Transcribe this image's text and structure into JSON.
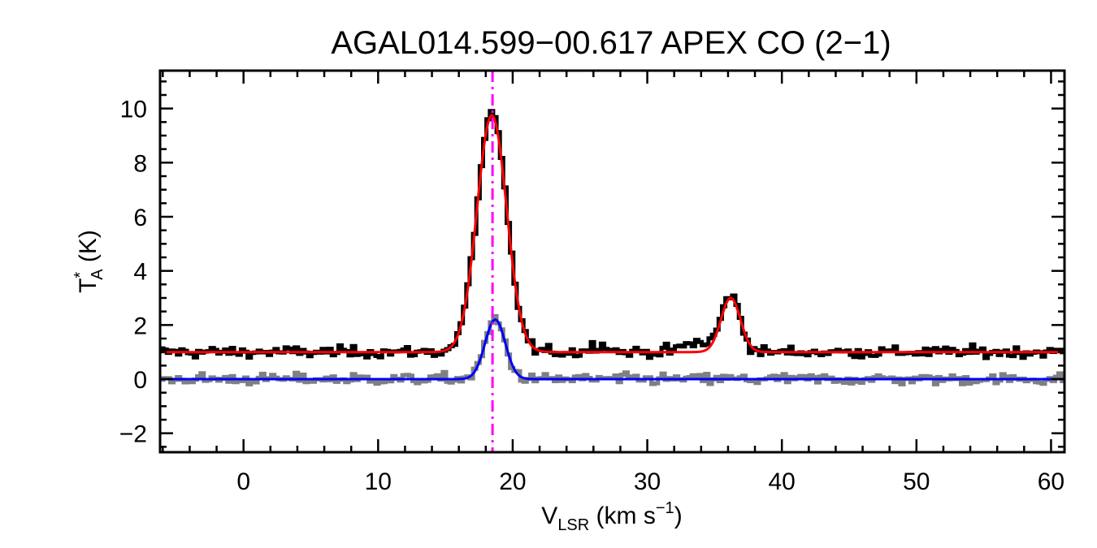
{
  "chart_data": {
    "type": "line",
    "title": "AGAL014.599−00.617  APEX CO (2−1)",
    "xlabel": {
      "main": "V",
      "sub": "LSR",
      "units_pre": " (km s",
      "sup": "−1",
      "units_post": ")"
    },
    "ylabel": {
      "main": "T",
      "sup": "*",
      "sub": "A",
      "units": " (K)"
    },
    "xlim": [
      -6.2,
      61.0
    ],
    "ylim": [
      -2.7,
      11.4
    ],
    "x_ticks": [
      0,
      10,
      20,
      30,
      40,
      50,
      60
    ],
    "x_tick_labels": [
      "0",
      "10",
      "20",
      "30",
      "40",
      "50",
      "60"
    ],
    "y_ticks": [
      -2,
      0,
      2,
      4,
      6,
      8,
      10
    ],
    "y_tick_labels": [
      "−2",
      "0",
      "2",
      "4",
      "6",
      "8",
      "10"
    ],
    "x_minor_step": 2,
    "y_minor_step": 0.5,
    "reference_line": {
      "x": 18.5,
      "color": "#ff00ff",
      "style": "dash-dot"
    },
    "series": [
      {
        "role": "observed-spectrum",
        "color": "#000000",
        "style": "step",
        "channel_width": 0.25,
        "x_start": -6.2,
        "baseline": 1.0,
        "noise_sigma": 0.17,
        "components": [
          {
            "amp": 8.8,
            "center": 18.45,
            "sigma": 1.1
          },
          {
            "amp": 2.1,
            "center": 36.2,
            "sigma": 0.7
          },
          {
            "amp": 0.3,
            "center": 26.5,
            "sigma": 0.6
          },
          {
            "amp": 0.35,
            "center": 33.7,
            "sigma": 1.0
          }
        ]
      },
      {
        "role": "residual-spectrum",
        "color": "#808080",
        "style": "step",
        "channel_width": 0.25,
        "x_start": -6.2,
        "baseline": 0.0,
        "noise_sigma": 0.17,
        "components": [
          {
            "amp": 2.2,
            "center": 18.7,
            "sigma": 0.75
          }
        ]
      },
      {
        "role": "fit",
        "color": "#ff0000",
        "style": "smooth",
        "baseline": 1.0,
        "components": [
          {
            "amp": 8.75,
            "center": 18.45,
            "sigma": 1.1
          },
          {
            "amp": 2.0,
            "center": 36.2,
            "sigma": 0.72
          }
        ]
      },
      {
        "role": "fit",
        "color": "#0000ff",
        "style": "smooth",
        "baseline": 0.0,
        "components": [
          {
            "amp": 2.2,
            "center": 18.7,
            "sigma": 0.75
          }
        ]
      }
    ]
  }
}
